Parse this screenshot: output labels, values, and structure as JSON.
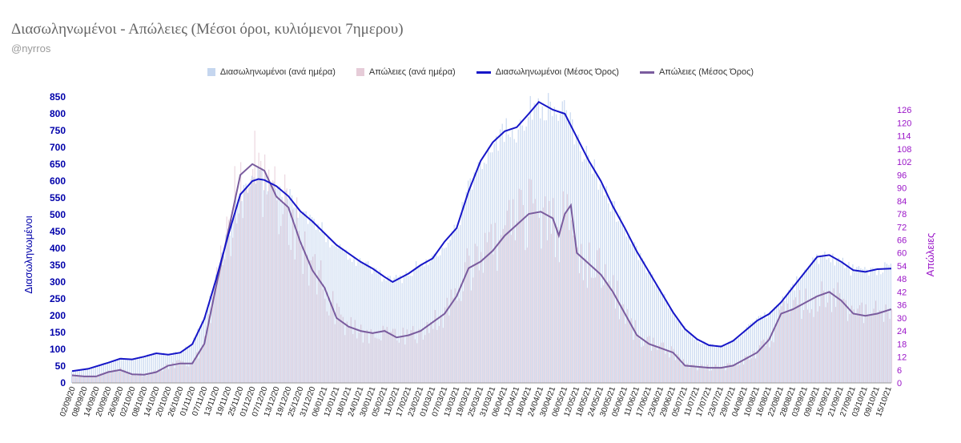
{
  "title": "Διασωληνωμένοι - Απώλειες (Μέσοι όροι, κυλιόμενοι 7ημερου)",
  "subtitle": "@nyrros",
  "colors": {
    "intubated_bar": "#c5d6ef",
    "deaths_bar": "#e6ccd8",
    "intubated_line": "#1616c8",
    "deaths_line": "#7a5c9e",
    "left_axis": "#0000aa",
    "right_axis": "#9a14c8"
  },
  "chart_data": {
    "type": "bar",
    "title": "Διασωληνωμένοι - Απώλειες (Μέσοι όροι, κυλιόμενοι 7ημερου)",
    "ylabel": "Διασωληνωμένοι",
    "y2label": "Απώλειες",
    "ylim": [
      0,
      850
    ],
    "y2lim": [
      0,
      132
    ],
    "yticks": [
      0,
      50,
      100,
      150,
      200,
      250,
      300,
      350,
      400,
      450,
      500,
      550,
      600,
      650,
      700,
      750,
      800,
      850
    ],
    "y2ticks": [
      0,
      6,
      12,
      18,
      24,
      30,
      36,
      42,
      48,
      54,
      60,
      66,
      72,
      78,
      84,
      90,
      96,
      102,
      108,
      114,
      120,
      126
    ],
    "grid": false,
    "legend_position": "top",
    "x_start": "2020-09-02",
    "x_end": "2021-10-16",
    "xtick_labels": [
      "02/09/20",
      "08/09/20",
      "14/09/20",
      "20/09/20",
      "26/09/20",
      "02/10/20",
      "08/10/20",
      "14/10/20",
      "20/10/20",
      "26/10/20",
      "01/11/20",
      "07/11/20",
      "13/11/20",
      "19/11/20",
      "25/11/20",
      "01/12/20",
      "07/12/20",
      "13/12/20",
      "19/12/20",
      "25/12/20",
      "31/12/20",
      "06/01/21",
      "12/01/21",
      "18/01/21",
      "24/01/21",
      "30/01/21",
      "05/02/21",
      "11/02/21",
      "17/02/21",
      "23/02/21",
      "01/03/21",
      "07/03/21",
      "13/03/21",
      "19/03/21",
      "25/03/21",
      "31/03/21",
      "06/04/21",
      "12/04/21",
      "18/04/21",
      "24/04/21",
      "30/04/21",
      "06/05/21",
      "12/05/21",
      "18/05/21",
      "24/05/21",
      "30/05/21",
      "05/06/21",
      "11/06/21",
      "17/06/21",
      "23/06/21",
      "29/06/21",
      "05/07/21",
      "11/07/21",
      "17/07/21",
      "23/07/21",
      "29/07/21",
      "04/08/21",
      "10/08/21",
      "16/08/21",
      "22/08/21",
      "28/08/21",
      "03/09/21",
      "09/09/21",
      "15/09/21",
      "21/09/21",
      "27/09/21",
      "03/10/21",
      "09/10/21",
      "15/10/21"
    ],
    "series": [
      {
        "name": "Διασωληνωμένοι (ανά ημέρα)",
        "kind": "bar",
        "axis": "left",
        "note": "daily bars ≈ rolling average with day-to-day noise",
        "follows": "Διασωληνωμένοι (Μέσος Όρος)"
      },
      {
        "name": "Απώλειες (ανά ημέρα)",
        "kind": "bar",
        "axis": "right",
        "follows": "Απώλειες (Μέσος Όρος)"
      },
      {
        "name": "Διασωληνωμένοι (Μέσος Όρος)",
        "kind": "line",
        "axis": "left",
        "points": [
          [
            "2020-09-02",
            35
          ],
          [
            "2020-09-10",
            42
          ],
          [
            "2020-09-20",
            60
          ],
          [
            "2020-09-26",
            72
          ],
          [
            "2020-10-02",
            70
          ],
          [
            "2020-10-08",
            78
          ],
          [
            "2020-10-14",
            88
          ],
          [
            "2020-10-20",
            84
          ],
          [
            "2020-10-26",
            90
          ],
          [
            "2020-11-01",
            115
          ],
          [
            "2020-11-07",
            190
          ],
          [
            "2020-11-13",
            310
          ],
          [
            "2020-11-19",
            440
          ],
          [
            "2020-11-25",
            560
          ],
          [
            "2020-12-01",
            600
          ],
          [
            "2020-12-04",
            606
          ],
          [
            "2020-12-07",
            603
          ],
          [
            "2020-12-13",
            585
          ],
          [
            "2020-12-19",
            555
          ],
          [
            "2020-12-25",
            510
          ],
          [
            "2020-12-31",
            480
          ],
          [
            "2021-01-06",
            445
          ],
          [
            "2021-01-12",
            410
          ],
          [
            "2021-01-18",
            385
          ],
          [
            "2021-01-24",
            360
          ],
          [
            "2021-01-30",
            340
          ],
          [
            "2021-02-05",
            315
          ],
          [
            "2021-02-09",
            300
          ],
          [
            "2021-02-17",
            325
          ],
          [
            "2021-02-23",
            350
          ],
          [
            "2021-03-01",
            370
          ],
          [
            "2021-03-07",
            420
          ],
          [
            "2021-03-13",
            460
          ],
          [
            "2021-03-19",
            570
          ],
          [
            "2021-03-25",
            660
          ],
          [
            "2021-03-31",
            715
          ],
          [
            "2021-04-06",
            748
          ],
          [
            "2021-04-12",
            760
          ],
          [
            "2021-04-18",
            800
          ],
          [
            "2021-04-23",
            835
          ],
          [
            "2021-04-30",
            812
          ],
          [
            "2021-05-06",
            800
          ],
          [
            "2021-05-12",
            730
          ],
          [
            "2021-05-18",
            660
          ],
          [
            "2021-05-24",
            600
          ],
          [
            "2021-05-30",
            525
          ],
          [
            "2021-06-05",
            460
          ],
          [
            "2021-06-11",
            390
          ],
          [
            "2021-06-17",
            330
          ],
          [
            "2021-06-23",
            270
          ],
          [
            "2021-06-29",
            210
          ],
          [
            "2021-07-05",
            160
          ],
          [
            "2021-07-11",
            130
          ],
          [
            "2021-07-17",
            112
          ],
          [
            "2021-07-23",
            108
          ],
          [
            "2021-07-29",
            125
          ],
          [
            "2021-08-04",
            155
          ],
          [
            "2021-08-10",
            185
          ],
          [
            "2021-08-16",
            205
          ],
          [
            "2021-08-22",
            240
          ],
          [
            "2021-08-28",
            285
          ],
          [
            "2021-09-03",
            330
          ],
          [
            "2021-09-09",
            375
          ],
          [
            "2021-09-15",
            380
          ],
          [
            "2021-09-21",
            360
          ],
          [
            "2021-09-27",
            335
          ],
          [
            "2021-10-03",
            330
          ],
          [
            "2021-10-09",
            338
          ],
          [
            "2021-10-16",
            340
          ]
        ]
      },
      {
        "name": "Απώλειες (Μέσος Όρος)",
        "kind": "line",
        "axis": "right",
        "points": [
          [
            "2020-09-02",
            3.5
          ],
          [
            "2020-09-08",
            3
          ],
          [
            "2020-09-14",
            3
          ],
          [
            "2020-09-20",
            5
          ],
          [
            "2020-09-26",
            6
          ],
          [
            "2020-10-02",
            4
          ],
          [
            "2020-10-08",
            3.8
          ],
          [
            "2020-10-14",
            5
          ],
          [
            "2020-10-20",
            8
          ],
          [
            "2020-10-26",
            9
          ],
          [
            "2020-11-01",
            9
          ],
          [
            "2020-11-07",
            18
          ],
          [
            "2020-11-13",
            45
          ],
          [
            "2020-11-19",
            70
          ],
          [
            "2020-11-25",
            96
          ],
          [
            "2020-12-01",
            101
          ],
          [
            "2020-12-07",
            98
          ],
          [
            "2020-12-13",
            86
          ],
          [
            "2020-12-19",
            81
          ],
          [
            "2020-12-25",
            65
          ],
          [
            "2020-12-31",
            52
          ],
          [
            "2021-01-06",
            44
          ],
          [
            "2021-01-12",
            30
          ],
          [
            "2021-01-18",
            26
          ],
          [
            "2021-01-24",
            24
          ],
          [
            "2021-01-30",
            23
          ],
          [
            "2021-02-05",
            24
          ],
          [
            "2021-02-11",
            21
          ],
          [
            "2021-02-17",
            22
          ],
          [
            "2021-02-23",
            24
          ],
          [
            "2021-03-01",
            28
          ],
          [
            "2021-03-07",
            32
          ],
          [
            "2021-03-13",
            40
          ],
          [
            "2021-03-19",
            53
          ],
          [
            "2021-03-25",
            56
          ],
          [
            "2021-03-31",
            61
          ],
          [
            "2021-04-06",
            68
          ],
          [
            "2021-04-12",
            73
          ],
          [
            "2021-04-18",
            78
          ],
          [
            "2021-04-24",
            79
          ],
          [
            "2021-04-30",
            76
          ],
          [
            "2021-05-03",
            68
          ],
          [
            "2021-05-06",
            78
          ],
          [
            "2021-05-09",
            82
          ],
          [
            "2021-05-12",
            60
          ],
          [
            "2021-05-18",
            55
          ],
          [
            "2021-05-24",
            50
          ],
          [
            "2021-05-30",
            42
          ],
          [
            "2021-06-05",
            32
          ],
          [
            "2021-06-11",
            22
          ],
          [
            "2021-06-17",
            18
          ],
          [
            "2021-06-23",
            16
          ],
          [
            "2021-06-29",
            14
          ],
          [
            "2021-07-05",
            8
          ],
          [
            "2021-07-11",
            7.5
          ],
          [
            "2021-07-17",
            7
          ],
          [
            "2021-07-23",
            7
          ],
          [
            "2021-07-29",
            8
          ],
          [
            "2021-08-04",
            11
          ],
          [
            "2021-08-10",
            14
          ],
          [
            "2021-08-16",
            20
          ],
          [
            "2021-08-22",
            32
          ],
          [
            "2021-08-28",
            34
          ],
          [
            "2021-09-03",
            37
          ],
          [
            "2021-09-09",
            40
          ],
          [
            "2021-09-15",
            42
          ],
          [
            "2021-09-21",
            38
          ],
          [
            "2021-09-27",
            32
          ],
          [
            "2021-10-03",
            31
          ],
          [
            "2021-10-09",
            32
          ],
          [
            "2021-10-16",
            34
          ]
        ]
      }
    ]
  }
}
